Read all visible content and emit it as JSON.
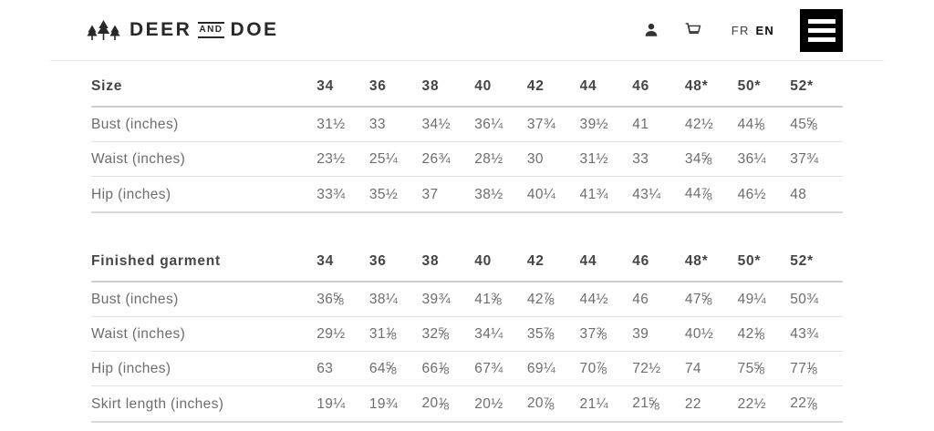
{
  "header": {
    "logo": {
      "deer": "DEER",
      "and": "AND",
      "doe": "DOE"
    },
    "lang": {
      "fr": "FR",
      "en": "EN"
    },
    "icons": [
      "pine-trees-logo-icon",
      "user-icon",
      "cart-icon",
      "hamburger-menu-icon"
    ]
  },
  "colors": {
    "logo_text": "#26282a",
    "menu_button_bg": "#000000",
    "menu_button_bars": "#ffffff",
    "header_text": "#454545",
    "cell_text": "#6d6d6d",
    "header_rule": "#cdcdcd",
    "row_rule": "#e3e3e3"
  },
  "tables": [
    {
      "header_label": "Size",
      "columns": [
        "34",
        "36",
        "38",
        "40",
        "42",
        "44",
        "46",
        "48*",
        "50*",
        "52*"
      ],
      "rows": [
        {
          "label": "Bust (inches)",
          "values": [
            "31½",
            "33",
            "34½",
            "36¼",
            "37¾",
            "39½",
            "41",
            "42½",
            "44⅛",
            "45⅝"
          ]
        },
        {
          "label": "Waist (inches)",
          "values": [
            "23½",
            "25¼",
            "26¾",
            "28½",
            "30",
            "31½",
            "33",
            "34⅝",
            "36¼",
            "37¾"
          ]
        },
        {
          "label": "Hip (inches)",
          "values": [
            "33¾",
            "35½",
            "37",
            "38½",
            "40¼",
            "41¾",
            "43¼",
            "44⅞",
            "46½",
            "48"
          ]
        }
      ]
    },
    {
      "header_label": "Finished garment",
      "columns": [
        "34",
        "36",
        "38",
        "40",
        "42",
        "44",
        "46",
        "48*",
        "50*",
        "52*"
      ],
      "rows": [
        {
          "label": "Bust (inches)",
          "values": [
            "36⅝",
            "38¼",
            "39¾",
            "41⅜",
            "42⅞",
            "44½",
            "46",
            "47⅝",
            "49¼",
            "50¾"
          ]
        },
        {
          "label": "Waist (inches)",
          "values": [
            "29½",
            "31⅛",
            "32⅝",
            "34¼",
            "35⅞",
            "37⅜",
            "39",
            "40½",
            "42⅛",
            "43¾"
          ]
        },
        {
          "label": "Hip (inches)",
          "values": [
            "63",
            "64⅝",
            "66⅛",
            "67¾",
            "69¼",
            "70⅞",
            "72½",
            "74",
            "75⅝",
            "77⅛"
          ]
        },
        {
          "label": "Skirt length (inches)",
          "values": [
            "19¼",
            "19¾",
            "20⅛",
            "20½",
            "20⅞",
            "21¼",
            "21⅝",
            "22",
            "22½",
            "22⅞"
          ]
        }
      ]
    }
  ]
}
